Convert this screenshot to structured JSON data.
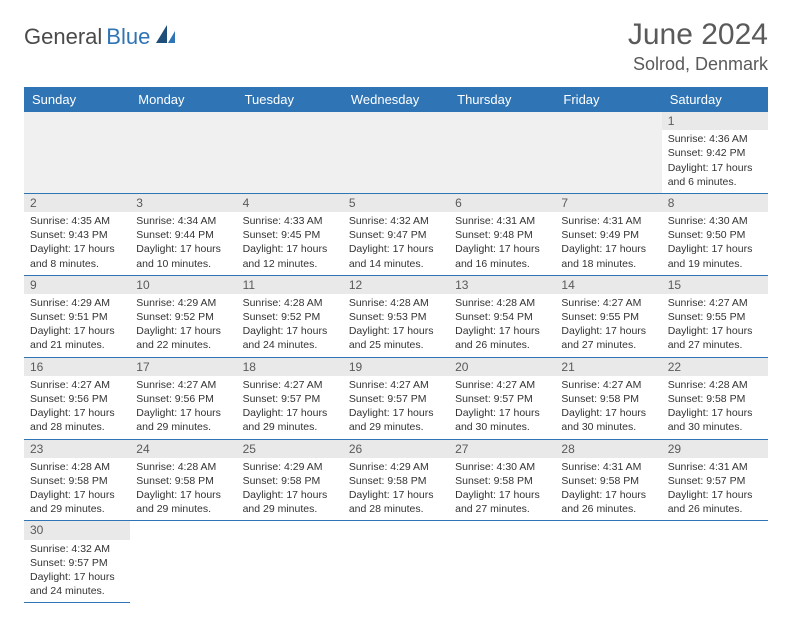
{
  "logo": {
    "prefix": "General",
    "suffix": "Blue"
  },
  "title": {
    "month": "June 2024",
    "location": "Solrod, Denmark"
  },
  "colors": {
    "header_bg": "#2f74b5",
    "header_fg": "#ffffff",
    "daynum_bg": "#e9e9e9",
    "text": "#333333",
    "title_text": "#5a5a5a",
    "cell_border": "#2f74b5"
  },
  "days_of_week": [
    "Sunday",
    "Monday",
    "Tuesday",
    "Wednesday",
    "Thursday",
    "Friday",
    "Saturday"
  ],
  "weeks": [
    [
      null,
      null,
      null,
      null,
      null,
      null,
      {
        "n": "1",
        "sr": "Sunrise: 4:36 AM",
        "ss": "Sunset: 9:42 PM",
        "d1": "Daylight: 17 hours",
        "d2": "and 6 minutes."
      }
    ],
    [
      {
        "n": "2",
        "sr": "Sunrise: 4:35 AM",
        "ss": "Sunset: 9:43 PM",
        "d1": "Daylight: 17 hours",
        "d2": "and 8 minutes."
      },
      {
        "n": "3",
        "sr": "Sunrise: 4:34 AM",
        "ss": "Sunset: 9:44 PM",
        "d1": "Daylight: 17 hours",
        "d2": "and 10 minutes."
      },
      {
        "n": "4",
        "sr": "Sunrise: 4:33 AM",
        "ss": "Sunset: 9:45 PM",
        "d1": "Daylight: 17 hours",
        "d2": "and 12 minutes."
      },
      {
        "n": "5",
        "sr": "Sunrise: 4:32 AM",
        "ss": "Sunset: 9:47 PM",
        "d1": "Daylight: 17 hours",
        "d2": "and 14 minutes."
      },
      {
        "n": "6",
        "sr": "Sunrise: 4:31 AM",
        "ss": "Sunset: 9:48 PM",
        "d1": "Daylight: 17 hours",
        "d2": "and 16 minutes."
      },
      {
        "n": "7",
        "sr": "Sunrise: 4:31 AM",
        "ss": "Sunset: 9:49 PM",
        "d1": "Daylight: 17 hours",
        "d2": "and 18 minutes."
      },
      {
        "n": "8",
        "sr": "Sunrise: 4:30 AM",
        "ss": "Sunset: 9:50 PM",
        "d1": "Daylight: 17 hours",
        "d2": "and 19 minutes."
      }
    ],
    [
      {
        "n": "9",
        "sr": "Sunrise: 4:29 AM",
        "ss": "Sunset: 9:51 PM",
        "d1": "Daylight: 17 hours",
        "d2": "and 21 minutes."
      },
      {
        "n": "10",
        "sr": "Sunrise: 4:29 AM",
        "ss": "Sunset: 9:52 PM",
        "d1": "Daylight: 17 hours",
        "d2": "and 22 minutes."
      },
      {
        "n": "11",
        "sr": "Sunrise: 4:28 AM",
        "ss": "Sunset: 9:52 PM",
        "d1": "Daylight: 17 hours",
        "d2": "and 24 minutes."
      },
      {
        "n": "12",
        "sr": "Sunrise: 4:28 AM",
        "ss": "Sunset: 9:53 PM",
        "d1": "Daylight: 17 hours",
        "d2": "and 25 minutes."
      },
      {
        "n": "13",
        "sr": "Sunrise: 4:28 AM",
        "ss": "Sunset: 9:54 PM",
        "d1": "Daylight: 17 hours",
        "d2": "and 26 minutes."
      },
      {
        "n": "14",
        "sr": "Sunrise: 4:27 AM",
        "ss": "Sunset: 9:55 PM",
        "d1": "Daylight: 17 hours",
        "d2": "and 27 minutes."
      },
      {
        "n": "15",
        "sr": "Sunrise: 4:27 AM",
        "ss": "Sunset: 9:55 PM",
        "d1": "Daylight: 17 hours",
        "d2": "and 27 minutes."
      }
    ],
    [
      {
        "n": "16",
        "sr": "Sunrise: 4:27 AM",
        "ss": "Sunset: 9:56 PM",
        "d1": "Daylight: 17 hours",
        "d2": "and 28 minutes."
      },
      {
        "n": "17",
        "sr": "Sunrise: 4:27 AM",
        "ss": "Sunset: 9:56 PM",
        "d1": "Daylight: 17 hours",
        "d2": "and 29 minutes."
      },
      {
        "n": "18",
        "sr": "Sunrise: 4:27 AM",
        "ss": "Sunset: 9:57 PM",
        "d1": "Daylight: 17 hours",
        "d2": "and 29 minutes."
      },
      {
        "n": "19",
        "sr": "Sunrise: 4:27 AM",
        "ss": "Sunset: 9:57 PM",
        "d1": "Daylight: 17 hours",
        "d2": "and 29 minutes."
      },
      {
        "n": "20",
        "sr": "Sunrise: 4:27 AM",
        "ss": "Sunset: 9:57 PM",
        "d1": "Daylight: 17 hours",
        "d2": "and 30 minutes."
      },
      {
        "n": "21",
        "sr": "Sunrise: 4:27 AM",
        "ss": "Sunset: 9:58 PM",
        "d1": "Daylight: 17 hours",
        "d2": "and 30 minutes."
      },
      {
        "n": "22",
        "sr": "Sunrise: 4:28 AM",
        "ss": "Sunset: 9:58 PM",
        "d1": "Daylight: 17 hours",
        "d2": "and 30 minutes."
      }
    ],
    [
      {
        "n": "23",
        "sr": "Sunrise: 4:28 AM",
        "ss": "Sunset: 9:58 PM",
        "d1": "Daylight: 17 hours",
        "d2": "and 29 minutes."
      },
      {
        "n": "24",
        "sr": "Sunrise: 4:28 AM",
        "ss": "Sunset: 9:58 PM",
        "d1": "Daylight: 17 hours",
        "d2": "and 29 minutes."
      },
      {
        "n": "25",
        "sr": "Sunrise: 4:29 AM",
        "ss": "Sunset: 9:58 PM",
        "d1": "Daylight: 17 hours",
        "d2": "and 29 minutes."
      },
      {
        "n": "26",
        "sr": "Sunrise: 4:29 AM",
        "ss": "Sunset: 9:58 PM",
        "d1": "Daylight: 17 hours",
        "d2": "and 28 minutes."
      },
      {
        "n": "27",
        "sr": "Sunrise: 4:30 AM",
        "ss": "Sunset: 9:58 PM",
        "d1": "Daylight: 17 hours",
        "d2": "and 27 minutes."
      },
      {
        "n": "28",
        "sr": "Sunrise: 4:31 AM",
        "ss": "Sunset: 9:58 PM",
        "d1": "Daylight: 17 hours",
        "d2": "and 26 minutes."
      },
      {
        "n": "29",
        "sr": "Sunrise: 4:31 AM",
        "ss": "Sunset: 9:57 PM",
        "d1": "Daylight: 17 hours",
        "d2": "and 26 minutes."
      }
    ],
    [
      {
        "n": "30",
        "sr": "Sunrise: 4:32 AM",
        "ss": "Sunset: 9:57 PM",
        "d1": "Daylight: 17 hours",
        "d2": "and 24 minutes."
      },
      null,
      null,
      null,
      null,
      null,
      null
    ]
  ]
}
